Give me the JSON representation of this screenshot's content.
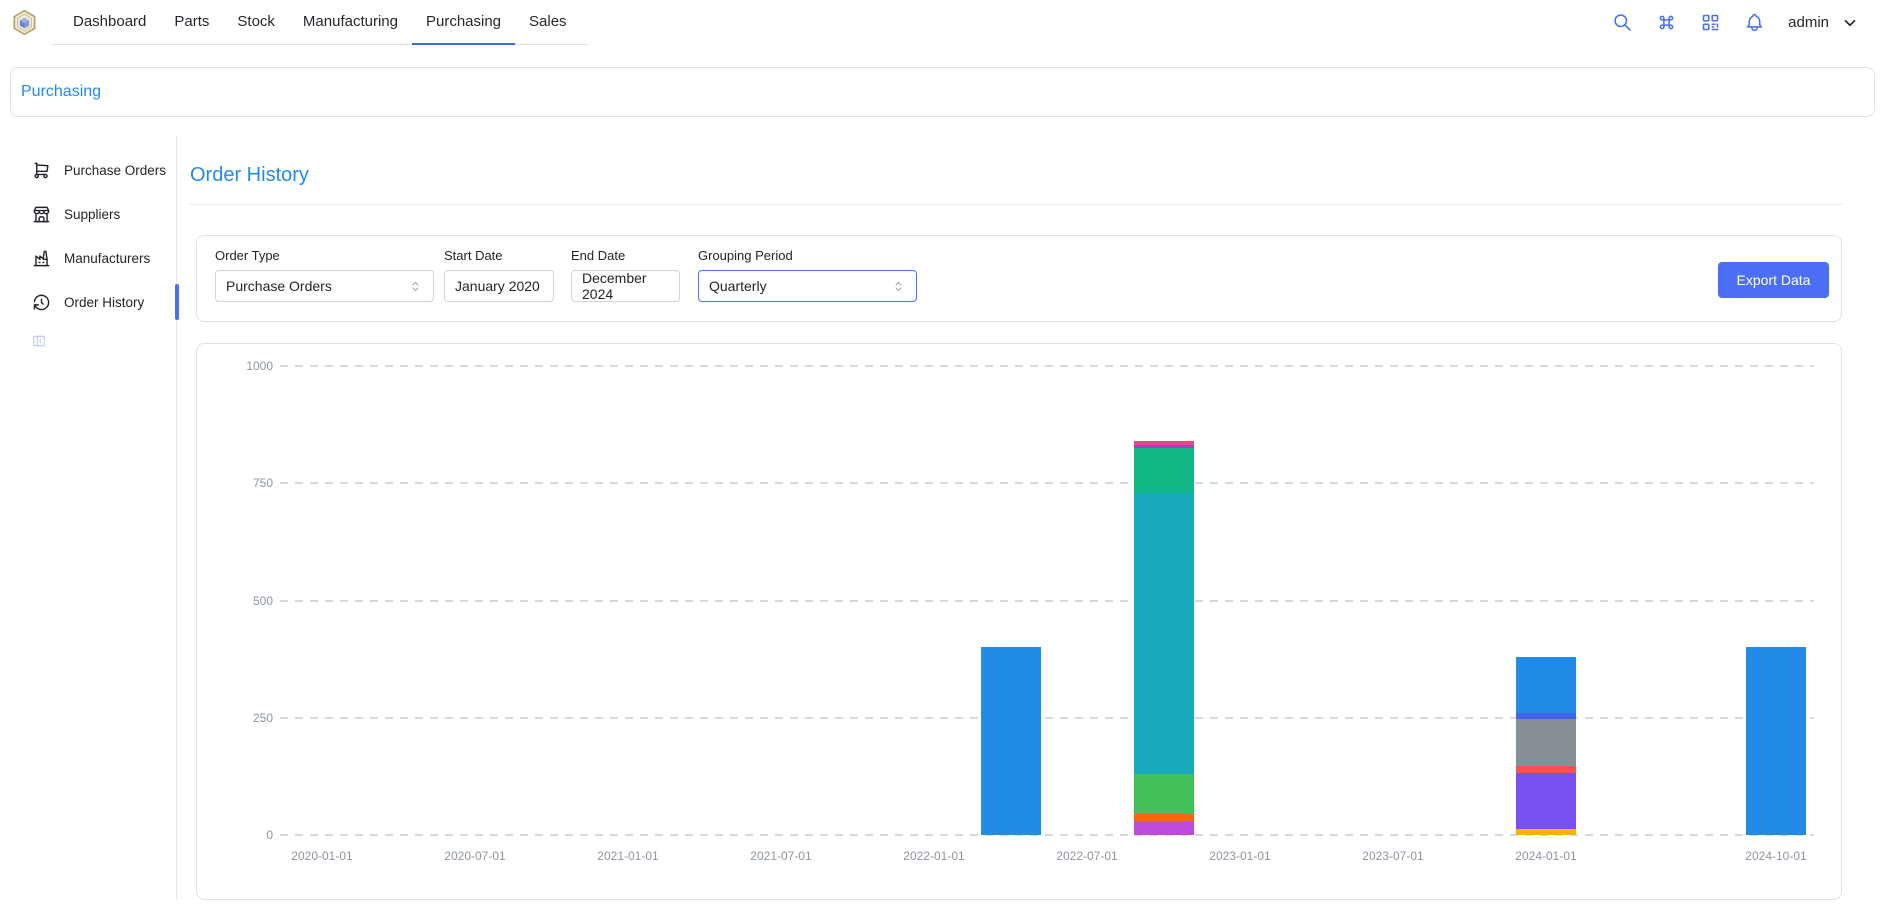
{
  "colors": {
    "accent_blue": "#228be6",
    "indigo": "#4c6ef5",
    "tab_active_underline": "#4263eb",
    "card_border": "#dee2e6",
    "axis_text": "#8b95a1"
  },
  "header": {
    "tabs": [
      {
        "label": "Dashboard",
        "active": false
      },
      {
        "label": "Parts",
        "active": false
      },
      {
        "label": "Stock",
        "active": false
      },
      {
        "label": "Manufacturing",
        "active": false
      },
      {
        "label": "Purchasing",
        "active": true
      },
      {
        "label": "Sales",
        "active": false
      }
    ],
    "icons": [
      "search-icon",
      "command-icon",
      "qrcode-icon",
      "bell-icon"
    ],
    "user": {
      "name": "admin"
    }
  },
  "breadcrumb": {
    "label": "Purchasing"
  },
  "sidebar": {
    "items": [
      {
        "label": "Purchase Orders",
        "icon": "shopping-cart-icon",
        "active": false
      },
      {
        "label": "Suppliers",
        "icon": "building-store-icon",
        "active": false
      },
      {
        "label": "Manufacturers",
        "icon": "factory-icon",
        "active": false
      },
      {
        "label": "Order History",
        "icon": "history-icon",
        "active": true
      }
    ],
    "collapse_icon": "sidebar-collapse-icon"
  },
  "main": {
    "title": "Order History",
    "filters": {
      "order_type": {
        "label": "Order Type",
        "value": "Purchase Orders"
      },
      "start_date": {
        "label": "Start Date",
        "value": "January 2020"
      },
      "end_date": {
        "label": "End Date",
        "value": "December 2024"
      },
      "grouping_period": {
        "label": "Grouping Period",
        "value": "Quarterly",
        "focused": true
      },
      "export_label": "Export Data"
    }
  },
  "chart_data": {
    "type": "bar",
    "stacked": true,
    "title": "",
    "xlabel": "",
    "ylabel": "",
    "ylim": [
      0,
      1000
    ],
    "yticks": [
      0,
      250,
      500,
      750,
      1000
    ],
    "grid": "dashed-horizontal",
    "legend": "none",
    "categories": [
      "2020-01-01",
      "2020-04-01",
      "2020-07-01",
      "2020-10-01",
      "2021-01-01",
      "2021-04-01",
      "2021-07-01",
      "2021-10-01",
      "2022-01-01",
      "2022-04-01",
      "2022-07-01",
      "2022-10-01",
      "2023-01-01",
      "2023-04-01",
      "2023-07-01",
      "2023-10-01",
      "2024-01-01",
      "2024-04-01",
      "2024-07-01",
      "2024-10-01"
    ],
    "x_ticks": [
      {
        "index": 0,
        "label": "2020-01-01"
      },
      {
        "index": 2,
        "label": "2020-07-01"
      },
      {
        "index": 4,
        "label": "2021-01-01"
      },
      {
        "index": 6,
        "label": "2021-07-01"
      },
      {
        "index": 8,
        "label": "2022-01-01"
      },
      {
        "index": 10,
        "label": "2022-07-01"
      },
      {
        "index": 12,
        "label": "2023-01-01"
      },
      {
        "index": 14,
        "label": "2023-07-01"
      },
      {
        "index": 16,
        "label": "2024-01-01"
      },
      {
        "index": 19,
        "label": "2024-10-01"
      }
    ],
    "bars": [
      {
        "index": 9,
        "category": "2022-04-01",
        "total": 400,
        "segments": [
          {
            "color": "#228be6",
            "value": 400
          }
        ]
      },
      {
        "index": 11,
        "category": "2022-10-01",
        "total": 840,
        "segments": [
          {
            "color": "#be4bdb",
            "value": 30
          },
          {
            "color": "#f76707",
            "value": 15
          },
          {
            "color": "#40c057",
            "value": 85
          },
          {
            "color": "#17aabc",
            "value": 600
          },
          {
            "color": "#12b886",
            "value": 95
          },
          {
            "color": "#ae3ec9",
            "value": 7
          },
          {
            "color": "#e64980",
            "value": 8
          }
        ]
      },
      {
        "index": 16,
        "category": "2024-01-01",
        "total": 380,
        "segments": [
          {
            "color": "#fab005",
            "value": 12
          },
          {
            "color": "#7950f2",
            "value": 120
          },
          {
            "color": "#fa5252",
            "value": 15
          },
          {
            "color": "#868e96",
            "value": 100
          },
          {
            "color": "#4263eb",
            "value": 13
          },
          {
            "color": "#228be6",
            "value": 120
          }
        ]
      },
      {
        "index": 19,
        "category": "2024-10-01",
        "total": 400,
        "segments": [
          {
            "color": "#228be6",
            "value": 400
          }
        ]
      }
    ]
  }
}
